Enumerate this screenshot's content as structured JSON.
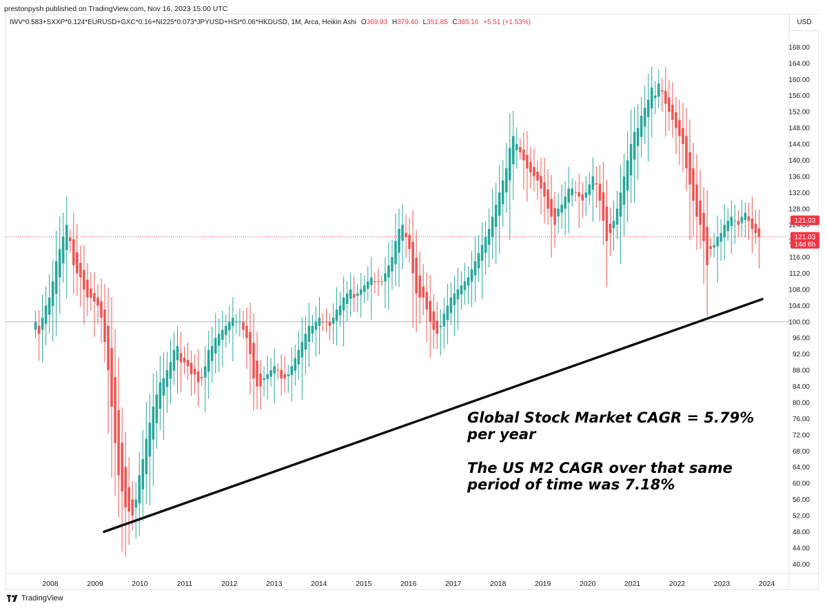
{
  "header": {
    "published": "prestonpysh published on TradingView.com, Nov 16, 2023 15:00 UTC"
  },
  "legend": {
    "symbol": "IWV*0.583+SXXP*0.124*EURUSD+GXC*0.16+NI225*0.073*JPYUSD+HSI*0.06*HKDUSD, 1M, Arca, Heikin Ashi",
    "o_label": "O",
    "o_value": "369.93",
    "h_label": "H",
    "h_value": "379.40",
    "l_label": "L",
    "l_value": "351.85",
    "c_label": "C",
    "c_value": "365.16",
    "change": "+5.51 (+1.53%)"
  },
  "currency": "USD",
  "footer": {
    "brand": "TradingView"
  },
  "annotations": {
    "cagr_line1": "Global Stock Market CAGR = 5.79%",
    "cagr_line2": "per year",
    "m2_line1": "The US M2 CAGR over that same",
    "m2_line2": "period of time was 7.18%"
  },
  "colors": {
    "up": "#26a69a",
    "down": "#ef5350",
    "trendline": "#0d0d12",
    "baseline": "#b2b5be",
    "price_tag": "#f23645"
  },
  "chart_data": {
    "type": "candlestick",
    "candle_type": "Heikin Ashi",
    "interval": "1M",
    "y_range": [
      38,
      172
    ],
    "y_ticks": [
      40,
      44,
      48,
      52,
      56,
      60,
      64,
      68,
      72,
      76,
      80,
      84,
      88,
      92,
      96,
      100,
      104,
      108,
      112,
      116,
      120,
      124,
      128,
      132,
      136,
      140,
      144,
      148,
      152,
      156,
      160,
      164,
      168
    ],
    "x_range": [
      2007.0,
      2024.5
    ],
    "x_ticks": [
      2008,
      2009,
      2010,
      2011,
      2012,
      2013,
      2014,
      2015,
      2016,
      2017,
      2018,
      2019,
      2020,
      2021,
      2022,
      2023,
      2024
    ],
    "baseline_value": 100,
    "last_price": "121.03",
    "last_price_label": "121.03",
    "countdown": "14d 6h",
    "trendline": {
      "start": {
        "x": 2009.2,
        "y": 48
      },
      "end": {
        "x": 2023.9,
        "y": 105.6
      }
    },
    "closes": [
      100,
      97,
      101,
      104,
      106,
      110,
      115,
      118,
      121,
      124,
      120,
      114,
      112,
      111,
      108,
      106,
      106,
      105,
      104,
      101,
      95,
      88,
      79,
      70,
      62,
      58,
      54,
      53,
      52,
      56,
      62,
      66,
      71,
      75,
      79,
      82,
      85,
      86,
      88,
      90,
      93,
      94,
      90,
      90,
      89,
      87,
      87,
      85,
      86,
      89,
      93,
      94,
      96,
      97,
      98,
      99,
      100,
      101,
      100,
      100,
      98,
      96,
      92,
      86,
      84,
      84,
      86,
      87,
      88,
      89,
      88,
      86,
      86,
      87,
      89,
      91,
      93,
      95,
      97,
      99,
      99,
      100,
      101,
      100,
      100,
      99,
      101,
      103,
      104,
      106,
      107,
      108,
      106,
      107,
      108,
      109,
      110,
      111,
      110,
      110,
      110,
      112,
      114,
      116,
      120,
      123,
      124,
      121,
      118,
      112,
      107,
      106,
      106,
      103,
      100,
      98,
      97,
      99,
      102,
      104,
      106,
      107,
      108,
      109,
      110,
      111,
      113,
      115,
      117,
      119,
      121,
      123,
      126,
      129,
      132,
      135,
      138,
      143,
      146,
      144,
      142,
      140,
      138,
      137,
      136,
      135,
      133,
      131,
      128,
      126,
      124,
      128,
      129,
      131,
      133,
      133,
      132,
      131,
      130,
      132,
      134,
      136,
      134,
      130,
      125,
      120,
      122,
      125,
      128,
      132,
      136,
      140,
      144,
      147,
      148,
      151,
      153,
      155,
      158,
      156,
      159,
      157,
      154,
      152,
      150,
      148,
      146,
      144,
      138,
      134,
      130,
      126,
      124,
      120,
      114,
      118,
      119,
      121,
      122,
      124,
      125,
      126,
      125,
      124,
      126,
      127,
      125,
      123,
      122,
      121
    ]
  }
}
